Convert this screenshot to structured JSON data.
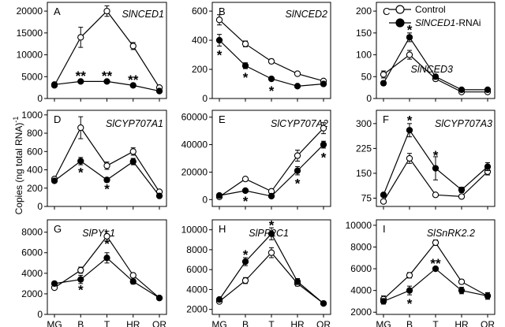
{
  "figure": {
    "ylabel": "Copies (ng total RNA)",
    "ylabel_superscript": "-1",
    "legend": [
      {
        "label": "Control",
        "marker": "open-circle"
      },
      {
        "label_italic": "SlNCED1",
        "label_suffix": "-RNAi",
        "marker": "filled-circle"
      }
    ]
  },
  "chart_data": [
    {
      "type": "line",
      "panel": "A",
      "title": "SlNCED1",
      "categories": [
        "MG",
        "B",
        "T",
        "HR",
        "OR"
      ],
      "ylim": [
        0,
        22000
      ],
      "yticks": [
        0,
        5000,
        10000,
        15000,
        20000
      ],
      "series": [
        {
          "name": "Control",
          "values": [
            3000,
            14000,
            20000,
            12000,
            2500
          ],
          "errors": [
            400,
            2300,
            1200,
            800,
            300
          ]
        },
        {
          "name": "SlNCED1-RNAi",
          "values": [
            3200,
            3900,
            3900,
            3000,
            1700
          ],
          "errors": [
            300,
            200,
            200,
            200,
            200
          ]
        }
      ],
      "asterisks": [
        {
          "x": "B",
          "text": "**",
          "value": 5200
        },
        {
          "x": "T",
          "text": "**",
          "value": 5200
        },
        {
          "x": "HR",
          "text": "**",
          "value": 4300
        }
      ]
    },
    {
      "type": "line",
      "panel": "B",
      "title": "SlNCED2",
      "categories": [
        "MG",
        "B",
        "T",
        "HR",
        "OR"
      ],
      "ylim": [
        0,
        660
      ],
      "yticks": [
        0,
        200,
        400,
        600
      ],
      "series": [
        {
          "name": "Control",
          "values": [
            540,
            375,
            255,
            170,
            120
          ],
          "errors": [
            35,
            20,
            15,
            8,
            10
          ]
        },
        {
          "name": "SlNCED1-RNAi",
          "values": [
            400,
            225,
            135,
            85,
            100
          ],
          "errors": [
            40,
            20,
            10,
            5,
            8
          ]
        }
      ],
      "asterisks": [
        {
          "x": "MG",
          "text": "*",
          "value": 300
        },
        {
          "x": "B",
          "text": "*",
          "value": 145
        },
        {
          "x": "T",
          "text": "*",
          "value": 55
        }
      ]
    },
    {
      "type": "line",
      "panel": "C",
      "title": "SlNCED3",
      "categories": [
        "MG",
        "B",
        "T",
        "HR",
        "OR"
      ],
      "ylim": [
        0,
        220
      ],
      "yticks": [
        0,
        50,
        100,
        150,
        200
      ],
      "series": [
        {
          "name": "Control",
          "values": [
            55,
            100,
            45,
            15,
            15
          ],
          "errors": [
            8,
            10,
            5,
            3,
            3
          ]
        },
        {
          "name": "SlNCED1-RNAi",
          "values": [
            35,
            140,
            50,
            20,
            20
          ],
          "errors": [
            5,
            10,
            5,
            3,
            3
          ]
        }
      ],
      "asterisks": [
        {
          "x": "B",
          "text": "*",
          "value": 158
        }
      ]
    },
    {
      "type": "line",
      "panel": "D",
      "title": "SlCYP707A1",
      "categories": [
        "MG",
        "B",
        "T",
        "HR",
        "OR"
      ],
      "ylim": [
        0,
        1050
      ],
      "yticks": [
        0,
        200,
        400,
        600,
        800,
        1000
      ],
      "series": [
        {
          "name": "Control",
          "values": [
            300,
            860,
            445,
            600,
            160
          ],
          "errors": [
            20,
            120,
            40,
            40,
            15
          ]
        },
        {
          "name": "SlNCED1-RNAi",
          "values": [
            280,
            495,
            290,
            490,
            115
          ],
          "errors": [
            20,
            40,
            25,
            35,
            10
          ]
        }
      ],
      "asterisks": [
        {
          "x": "B",
          "text": "*",
          "value": 375
        },
        {
          "x": "T",
          "text": "*",
          "value": 195
        }
      ]
    },
    {
      "type": "line",
      "panel": "E",
      "title": "SlCYP707A2",
      "categories": [
        "MG",
        "B",
        "T",
        "HR",
        "OR"
      ],
      "ylim": [
        -5000,
        65000
      ],
      "yticks": [
        0,
        20000,
        40000,
        60000
      ],
      "series": [
        {
          "name": "Control",
          "values": [
            2000,
            15000,
            6000,
            32000,
            52000
          ],
          "errors": [
            500,
            1000,
            1000,
            4000,
            4000
          ]
        },
        {
          "name": "SlNCED1-RNAi",
          "values": [
            3000,
            6500,
            2500,
            21000,
            40000
          ],
          "errors": [
            500,
            500,
            500,
            3000,
            2500
          ]
        }
      ],
      "asterisks": [
        {
          "x": "B",
          "text": "*",
          "value": -1000
        },
        {
          "x": "HR",
          "text": "*",
          "value": 12000
        },
        {
          "x": "OR",
          "text": "*",
          "value": 31000
        }
      ]
    },
    {
      "type": "line",
      "panel": "F",
      "title": "SlCYP707A3",
      "categories": [
        "MG",
        "B",
        "T",
        "HR",
        "OR"
      ],
      "ylim": [
        50,
        340
      ],
      "yticks": [
        75,
        150,
        225,
        300
      ],
      "series": [
        {
          "name": "Control",
          "values": [
            65,
            195,
            85,
            80,
            155
          ],
          "errors": [
            5,
            15,
            4,
            5,
            10
          ]
        },
        {
          "name": "SlNCED1-RNAi",
          "values": [
            85,
            280,
            165,
            100,
            170
          ],
          "errors": [
            6,
            20,
            35,
            8,
            12
          ]
        }
      ],
      "asterisks": [
        {
          "x": "B",
          "text": "*",
          "value": 310
        },
        {
          "x": "T",
          "text": "*",
          "value": 205
        }
      ]
    },
    {
      "type": "line",
      "panel": "G",
      "title": "SlPYL1",
      "categories": [
        "MG",
        "B",
        "T",
        "HR",
        "OR"
      ],
      "ylim": [
        0,
        9200
      ],
      "yticks": [
        0,
        2000,
        4000,
        6000,
        8000
      ],
      "series": [
        {
          "name": "Control",
          "values": [
            2600,
            4300,
            7600,
            3800,
            1600
          ],
          "errors": [
            150,
            300,
            500,
            200,
            100
          ]
        },
        {
          "name": "SlNCED1-RNAi",
          "values": [
            3000,
            3400,
            5500,
            3200,
            1600
          ],
          "errors": [
            150,
            400,
            500,
            250,
            100
          ]
        }
      ],
      "asterisks": [
        {
          "x": "B",
          "text": "*",
          "value": 2400
        },
        {
          "x": "T",
          "text": "*",
          "value": 6900
        }
      ]
    },
    {
      "type": "line",
      "panel": "H",
      "title": "SlPP2C1",
      "categories": [
        "MG",
        "B",
        "T",
        "HR",
        "OR"
      ],
      "ylim": [
        1500,
        11000
      ],
      "yticks": [
        2000,
        4000,
        6000,
        8000,
        10000
      ],
      "series": [
        {
          "name": "Control",
          "values": [
            2800,
            4900,
            7700,
            4600,
            2600
          ],
          "errors": [
            200,
            300,
            500,
            250,
            150
          ]
        },
        {
          "name": "SlNCED1-RNAi",
          "values": [
            3000,
            6800,
            9600,
            4800,
            2600
          ],
          "errors": [
            200,
            400,
            600,
            300,
            150
          ]
        }
      ],
      "asterisks": [
        {
          "x": "B",
          "text": "*",
          "value": 7500
        },
        {
          "x": "T",
          "text": "*",
          "value": 10500
        }
      ]
    },
    {
      "type": "line",
      "panel": "I",
      "title": "SlSnRK2.2",
      "categories": [
        "MG",
        "B",
        "T",
        "HR",
        "OR"
      ],
      "ylim": [
        1800,
        10500
      ],
      "yticks": [
        2000,
        4000,
        6000,
        8000,
        10000
      ],
      "series": [
        {
          "name": "Control",
          "values": [
            3200,
            5400,
            8400,
            4800,
            3500
          ],
          "errors": [
            300,
            250,
            250,
            200,
            300
          ]
        },
        {
          "name": "SlNCED1-RNAi",
          "values": [
            3000,
            4000,
            6000,
            4000,
            3500
          ],
          "errors": [
            250,
            400,
            150,
            300,
            300
          ]
        }
      ],
      "asterisks": [
        {
          "x": "B",
          "text": "*",
          "value": 2800
        },
        {
          "x": "T",
          "text": "**",
          "value": 6500
        }
      ]
    }
  ]
}
